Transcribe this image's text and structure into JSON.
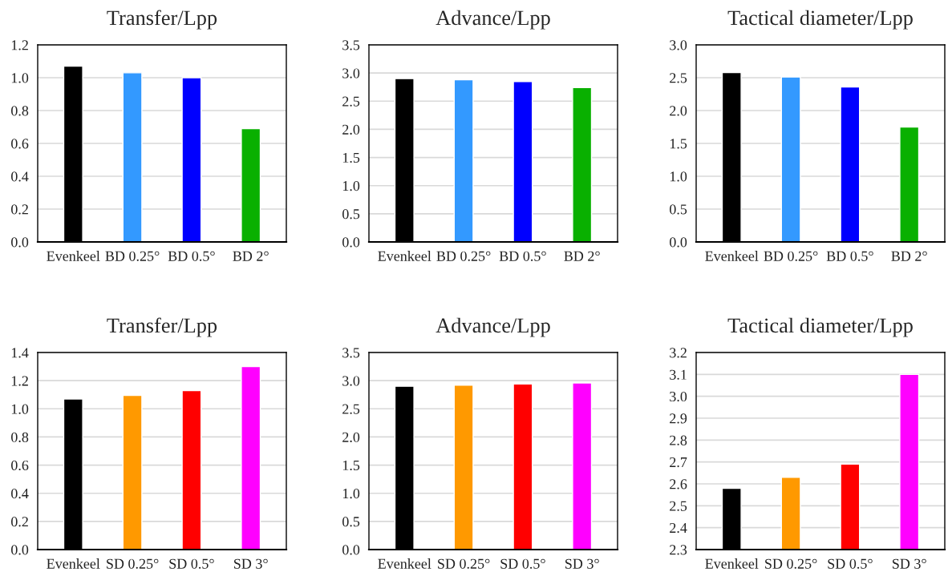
{
  "chart_data": [
    {
      "type": "bar",
      "title": "Transfer/Lpp",
      "categories": [
        "Evenkeel",
        "BD 0.25°",
        "BD 0.5°",
        "BD 2°"
      ],
      "values": [
        1.07,
        1.03,
        1.0,
        0.69
      ],
      "colors": [
        "#000000",
        "#3399ff",
        "#0000ff",
        "#09b000"
      ],
      "ylim": [
        0,
        1.2
      ],
      "yticks": [
        {
          "value": 0,
          "label": "0.0"
        },
        {
          "value": 0.2,
          "label": "0.2"
        },
        {
          "value": 0.4,
          "label": "0.4"
        },
        {
          "value": 0.6,
          "label": "0.6"
        },
        {
          "value": 0.8,
          "label": "0.8"
        },
        {
          "value": 1,
          "label": "1.0"
        },
        {
          "value": 1.2,
          "label": "1.2"
        }
      ],
      "grid": "y"
    },
    {
      "type": "bar",
      "title": "Advance/Lpp",
      "categories": [
        "Evenkeel",
        "BD 0.25°",
        "BD 0.5°",
        "BD 2°"
      ],
      "values": [
        2.9,
        2.88,
        2.85,
        2.74
      ],
      "colors": [
        "#000000",
        "#3399ff",
        "#0000ff",
        "#09b000"
      ],
      "ylim": [
        0,
        3.5
      ],
      "yticks": [
        {
          "value": 0,
          "label": "0.0"
        },
        {
          "value": 0.5,
          "label": "0.5"
        },
        {
          "value": 1,
          "label": "1.0"
        },
        {
          "value": 1.5,
          "label": "1.5"
        },
        {
          "value": 2,
          "label": "2.0"
        },
        {
          "value": 2.5,
          "label": "2.5"
        },
        {
          "value": 3,
          "label": "3.0"
        },
        {
          "value": 3.5,
          "label": "3.5"
        }
      ],
      "grid": "y"
    },
    {
      "type": "bar",
      "title": "Tactical diameter/Lpp",
      "categories": [
        "Evenkeel",
        "BD 0.25°",
        "BD 0.5°",
        "BD 2°"
      ],
      "values": [
        2.58,
        2.51,
        2.36,
        1.75
      ],
      "colors": [
        "#000000",
        "#3399ff",
        "#0000ff",
        "#09b000"
      ],
      "ylim": [
        0,
        3.0
      ],
      "yticks": [
        {
          "value": 0,
          "label": "0.0"
        },
        {
          "value": 0.5,
          "label": "0.5"
        },
        {
          "value": 1,
          "label": "1.0"
        },
        {
          "value": 1.5,
          "label": "1.5"
        },
        {
          "value": 2,
          "label": "2.0"
        },
        {
          "value": 2.5,
          "label": "2.5"
        },
        {
          "value": 3,
          "label": "3.0"
        }
      ],
      "grid": "y"
    },
    {
      "type": "bar",
      "title": "Transfer/Lpp",
      "categories": [
        "Evenkeel",
        "SD 0.25°",
        "SD 0.5°",
        "SD 3°"
      ],
      "values": [
        1.07,
        1.095,
        1.13,
        1.3
      ],
      "colors": [
        "#000000",
        "#ff9900",
        "#ff0000",
        "#ff00ff"
      ],
      "ylim": [
        0,
        1.4
      ],
      "yticks": [
        {
          "value": 0,
          "label": "0.0"
        },
        {
          "value": 0.2,
          "label": "0.2"
        },
        {
          "value": 0.4,
          "label": "0.4"
        },
        {
          "value": 0.6,
          "label": "0.6"
        },
        {
          "value": 0.8,
          "label": "0.8"
        },
        {
          "value": 1,
          "label": "1.0"
        },
        {
          "value": 1.2,
          "label": "1.2"
        },
        {
          "value": 1.4,
          "label": "1.4"
        }
      ],
      "grid": "y"
    },
    {
      "type": "bar",
      "title": "Advance/Lpp",
      "categories": [
        "Evenkeel",
        "SD 0.25°",
        "SD 0.5°",
        "SD 3°"
      ],
      "values": [
        2.9,
        2.92,
        2.94,
        2.96
      ],
      "colors": [
        "#000000",
        "#ff9900",
        "#ff0000",
        "#ff00ff"
      ],
      "ylim": [
        0,
        3.5
      ],
      "yticks": [
        {
          "value": 0,
          "label": "0.0"
        },
        {
          "value": 0.5,
          "label": "0.5"
        },
        {
          "value": 1,
          "label": "1.0"
        },
        {
          "value": 1.5,
          "label": "1.5"
        },
        {
          "value": 2,
          "label": "2.0"
        },
        {
          "value": 2.5,
          "label": "2.5"
        },
        {
          "value": 3,
          "label": "3.0"
        },
        {
          "value": 3.5,
          "label": "3.5"
        }
      ],
      "grid": "y"
    },
    {
      "type": "bar",
      "title": "Tactical diameter/Lpp",
      "categories": [
        "Evenkeel",
        "SD 0.25°",
        "SD 0.5°",
        "SD 3°"
      ],
      "values": [
        2.58,
        2.63,
        2.69,
        3.1
      ],
      "colors": [
        "#000000",
        "#ff9900",
        "#ff0000",
        "#ff00ff"
      ],
      "ylim": [
        2.3,
        3.2
      ],
      "yticks": [
        {
          "value": 2.3,
          "label": "2.3"
        },
        {
          "value": 2.4,
          "label": "2.4"
        },
        {
          "value": 2.5,
          "label": "2.5"
        },
        {
          "value": 2.6,
          "label": "2.6"
        },
        {
          "value": 2.7,
          "label": "2.7"
        },
        {
          "value": 2.8,
          "label": "2.8"
        },
        {
          "value": 2.9,
          "label": "2.9"
        },
        {
          "value": 3.0,
          "label": "3.0"
        },
        {
          "value": 3.1,
          "label": "3.1"
        },
        {
          "value": 3.2,
          "label": "3.2"
        }
      ],
      "grid": "y"
    }
  ]
}
